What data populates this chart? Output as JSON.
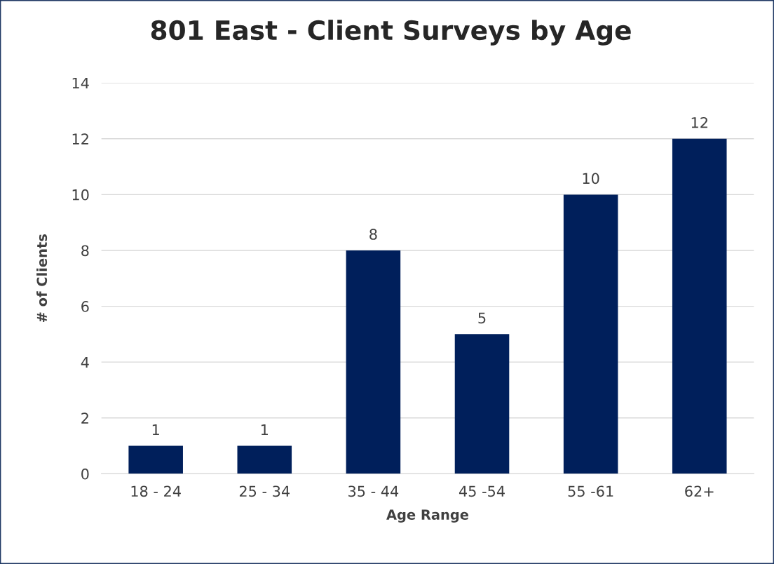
{
  "chart_data": {
    "type": "bar",
    "title": "801 East - Client Surveys by Age",
    "xlabel": "Age Range",
    "ylabel": "# of Clients",
    "categories": [
      "18 - 24",
      "25 - 34",
      "35 - 44",
      "45 -54",
      "55 -61",
      "62+"
    ],
    "values": [
      1,
      1,
      8,
      5,
      10,
      12
    ],
    "color": "#001f5b",
    "ylim": [
      0,
      14
    ],
    "yticks": [
      0,
      2,
      4,
      6,
      8,
      10,
      12,
      14
    ],
    "grid": "y",
    "data_labels": true,
    "legend": false
  }
}
